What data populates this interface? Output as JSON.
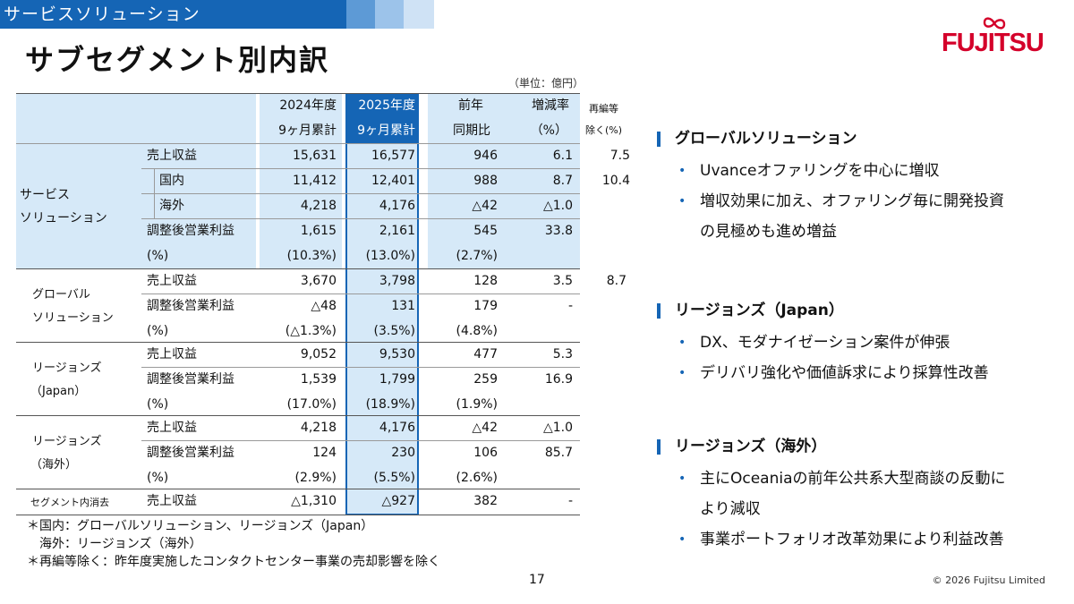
{
  "header": {
    "band_label": "サービスソリューション",
    "title": "サブセグメント別内訳",
    "logo": "FUJITSU"
  },
  "unit_note": "（単位：億円）",
  "columns": {
    "c2024": [
      "2024年度",
      "9ヶ月累計"
    ],
    "c2025": [
      "2025年度",
      "9ヶ月累計"
    ],
    "yoy": [
      "前年",
      "同期比"
    ],
    "rate": [
      "増減率",
      "（%）"
    ],
    "excl": [
      "再編等",
      "除く(%)"
    ]
  },
  "groups": {
    "service": [
      "サービス",
      "ソリューション"
    ],
    "global": [
      "グローバル",
      "ソリューション"
    ],
    "japan": [
      "リージョンズ",
      "（Japan）"
    ],
    "overseas": [
      "リージョンズ",
      "（海外）"
    ],
    "elim": "セグメント内消去"
  },
  "rows": [
    {
      "label": "売上収益",
      "v2024": "15,631",
      "v2025": "16,577",
      "yoy": "946",
      "rate": "6.1",
      "excl": "7.5"
    },
    {
      "label": "国内",
      "v2024": "11,412",
      "v2025": "12,401",
      "yoy": "988",
      "rate": "8.7",
      "excl": "10.4"
    },
    {
      "label": "海外",
      "v2024": "4,218",
      "v2025": "4,176",
      "yoy": "△42",
      "rate": "△1.0",
      "excl": ""
    },
    {
      "label": "調整後営業利益",
      "v2024": "1,615",
      "v2025": "2,161",
      "yoy": "545",
      "rate": "33.8",
      "excl": ""
    },
    {
      "label": "(%)",
      "v2024": "(10.3%)",
      "v2025": "(13.0%)",
      "yoy": "(2.7%)",
      "rate": "",
      "excl": ""
    },
    {
      "label": "売上収益",
      "v2024": "3,670",
      "v2025": "3,798",
      "yoy": "128",
      "rate": "3.5",
      "excl": "8.7"
    },
    {
      "label": "調整後営業利益",
      "v2024": "△48",
      "v2025": "131",
      "yoy": "179",
      "rate": "-",
      "excl": ""
    },
    {
      "label": "(%)",
      "v2024": "(△1.3%)",
      "v2025": "(3.5%)",
      "yoy": "(4.8%)",
      "rate": "",
      "excl": ""
    },
    {
      "label": "売上収益",
      "v2024": "9,052",
      "v2025": "9,530",
      "yoy": "477",
      "rate": "5.3",
      "excl": ""
    },
    {
      "label": "調整後営業利益",
      "v2024": "1,539",
      "v2025": "1,799",
      "yoy": "259",
      "rate": "16.9",
      "excl": ""
    },
    {
      "label": "(%)",
      "v2024": "(17.0%)",
      "v2025": "(18.9%)",
      "yoy": "(1.9%)",
      "rate": "",
      "excl": ""
    },
    {
      "label": "売上収益",
      "v2024": "4,218",
      "v2025": "4,176",
      "yoy": "△42",
      "rate": "△1.0",
      "excl": ""
    },
    {
      "label": "調整後営業利益",
      "v2024": "124",
      "v2025": "230",
      "yoy": "106",
      "rate": "85.7",
      "excl": ""
    },
    {
      "label": "(%)",
      "v2024": "(2.9%)",
      "v2025": "(5.5%)",
      "yoy": "(2.6%)",
      "rate": "",
      "excl": ""
    },
    {
      "label": "売上収益",
      "v2024": "△1,310",
      "v2025": "△927",
      "yoy": "382",
      "rate": "-",
      "excl": ""
    }
  ],
  "notes": [
    "＊国内：グローバルソリューション、リージョンズ（Japan）",
    "　海外：リージョンズ（海外）",
    "＊再編等除く：昨年度実施したコンタクトセンター事業の売却影響を除く"
  ],
  "page_number": "17",
  "copyright": "© 2026 Fujitsu Limited",
  "sections": [
    {
      "heading": "グローバルソリューション",
      "bullets": [
        [
          "Uvanceオファリングを中心に増収"
        ],
        [
          "増収効果に加え、オファリング毎に開発投資",
          "の見極めも進め増益"
        ]
      ]
    },
    {
      "heading": "リージョンズ（Japan）",
      "bullets": [
        [
          "DX、モダナイゼーション案件が伸張"
        ],
        [
          "デリバリ強化や価値訴求により採算性改善"
        ]
      ]
    },
    {
      "heading": "リージョンズ（海外）",
      "bullets": [
        [
          "主にOceaniaの前年公共系大型商談の反動に",
          "より減収"
        ],
        [
          "事業ポートフォリオ改革効果により利益改善"
        ]
      ]
    }
  ],
  "colors": {
    "accent": "#1565b5",
    "logo_red": "#d4002a",
    "table_fill": "#d6e9f8"
  }
}
